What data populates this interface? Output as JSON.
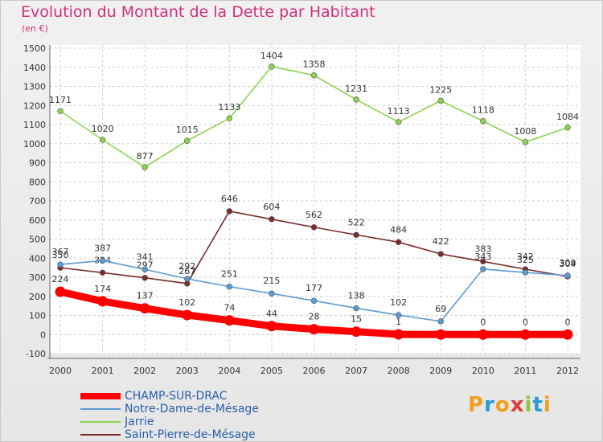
{
  "header": {
    "title": "Evolution du Montant de la Dette par Habitant",
    "unit": "(en €)"
  },
  "logo": {
    "text": "Proxiti",
    "letters": [
      "P",
      "r",
      "o",
      "x",
      "i",
      "t",
      "i"
    ]
  },
  "chart_data": {
    "type": "line",
    "title": "Evolution du Montant de la Dette par Habitant",
    "ylabel": "(en €)",
    "xlabel": "",
    "ylim": [
      -100,
      1500
    ],
    "yticks": [
      -100,
      0,
      100,
      200,
      300,
      400,
      500,
      600,
      700,
      800,
      900,
      1000,
      1100,
      1200,
      1300,
      1400,
      1500
    ],
    "grid": true,
    "legend_position": "bottom-left",
    "categories": [
      "2000",
      "2001",
      "2002",
      "2003",
      "2004",
      "2005",
      "2006",
      "2007",
      "2008",
      "2009",
      "2010",
      "2011",
      "2012"
    ],
    "series": [
      {
        "name": "CHAMP-SUR-DRAC",
        "color": "#ff0000",
        "values": [
          224,
          174,
          137,
          102,
          74,
          44,
          28,
          15,
          1,
          0,
          0,
          0,
          0
        ],
        "labels": [
          "224",
          "174",
          "137",
          "102",
          "74",
          "44",
          "28",
          "15",
          "1",
          "",
          "0",
          "0",
          "0"
        ]
      },
      {
        "name": "Notre-Dame-de-Mésage",
        "color": "#5b9bd5",
        "values": [
          367,
          387,
          341,
          292,
          251,
          215,
          177,
          138,
          102,
          69,
          343,
          325,
          309
        ],
        "labels": [
          "367",
          "387",
          "341",
          "292",
          "251",
          "215",
          "177",
          "138",
          "102",
          "69",
          "343",
          "325",
          "309"
        ]
      },
      {
        "name": "Jarrie",
        "color": "#8cd450",
        "values": [
          1171,
          1020,
          877,
          1015,
          1133,
          1404,
          1358,
          1231,
          1113,
          1225,
          1118,
          1008,
          1084
        ],
        "labels": [
          "1171",
          "1020",
          "877",
          "1015",
          "1133",
          "1404",
          "1358",
          "1231",
          "1113",
          "1225",
          "1118",
          "1008",
          "1084"
        ]
      },
      {
        "name": "Saint-Pierre-de-Mésage",
        "color": "#7a2c2c",
        "values": [
          350,
          324,
          297,
          267,
          646,
          604,
          562,
          522,
          484,
          422,
          383,
          342,
          304
        ],
        "labels": [
          "350",
          "324",
          "297",
          "267",
          "646",
          "604",
          "562",
          "522",
          "484",
          "422",
          "383",
          "342",
          "304"
        ]
      }
    ]
  }
}
